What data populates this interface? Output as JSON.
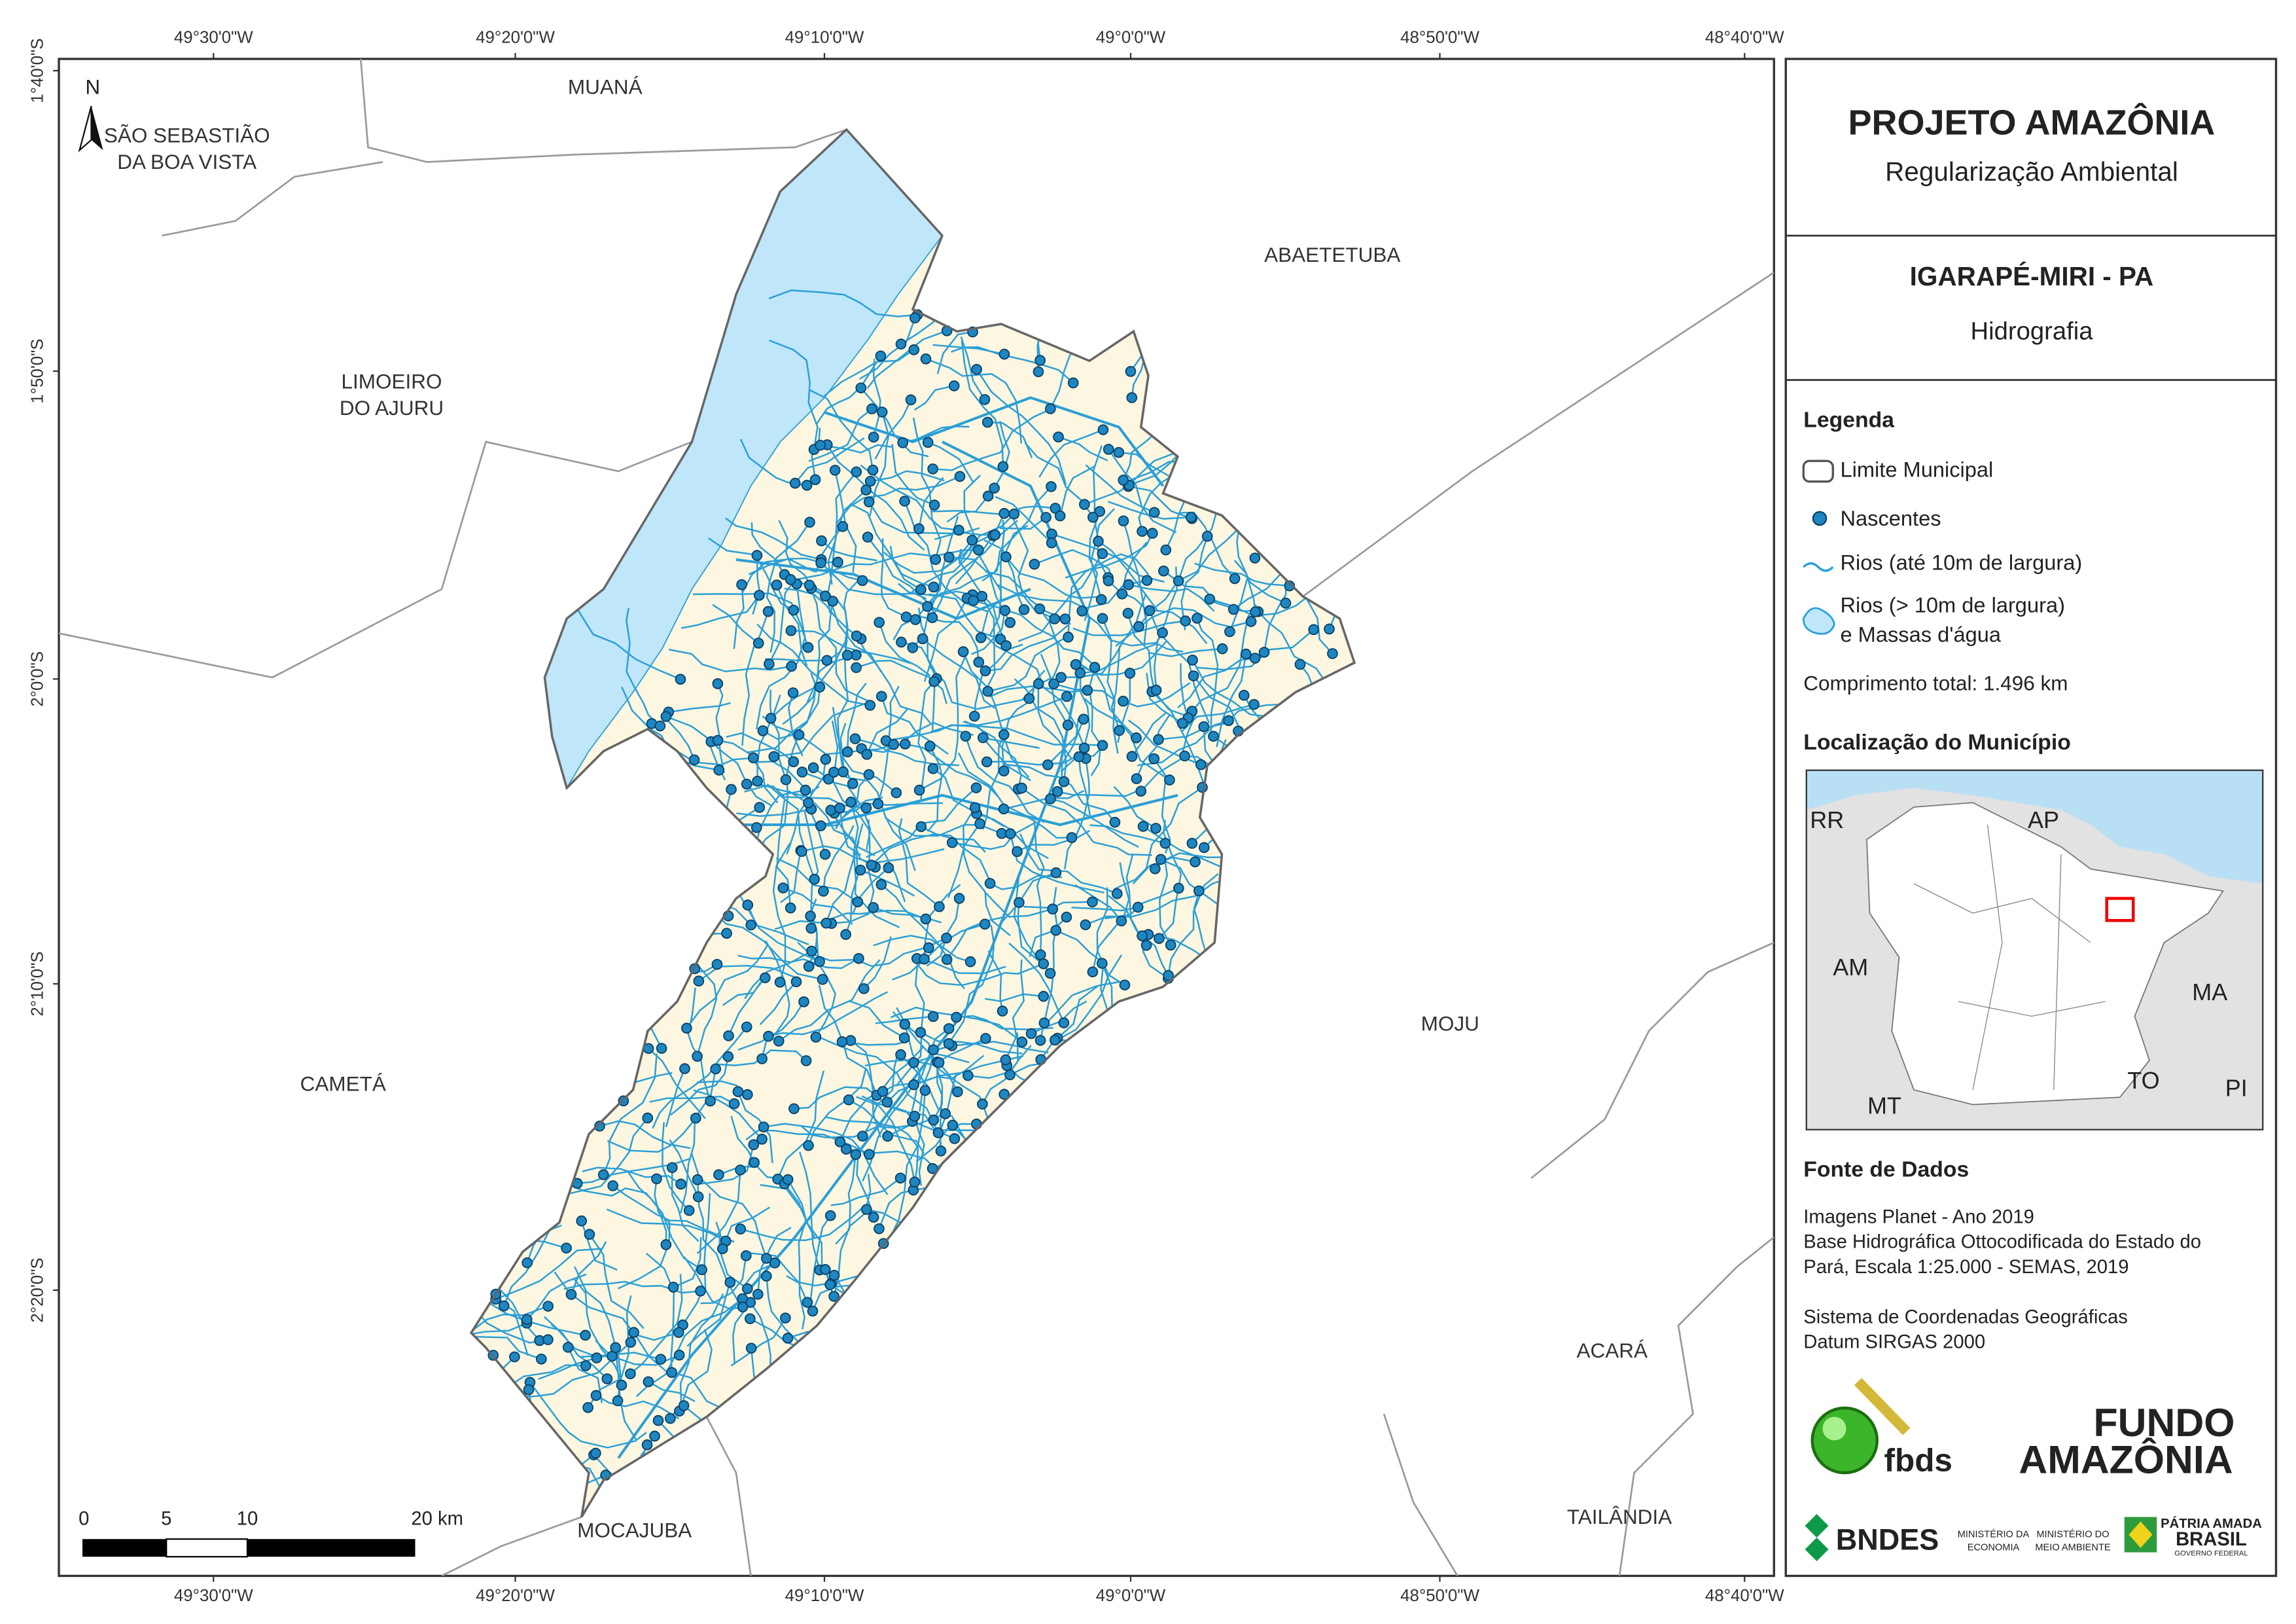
{
  "header": {
    "title": "PROJETO AMAZÔNIA",
    "subtitle": "Regularização Ambiental"
  },
  "map_title": {
    "title": "IGARAPÉ-MIRI - PA",
    "subtitle": "Hidrografia"
  },
  "grid": {
    "lon_labels": [
      "49°30'0\"W",
      "49°20'0\"W",
      "49°10'0\"W",
      "49°0'0\"W",
      "48°50'0\"W",
      "48°40'0\"W"
    ],
    "lat_labels": [
      "1°40'0\"S",
      "1°50'0\"S",
      "2°0'0\"S",
      "2°10'0\"S",
      "2°20'0\"S"
    ]
  },
  "north_arrow": "N",
  "places": [
    {
      "lines": [
        "MUANÁ"
      ]
    },
    {
      "lines": [
        "SÃO SEBASTIÃO",
        "DA BOA VISTA"
      ]
    },
    {
      "lines": [
        "ABAETETUBA"
      ]
    },
    {
      "lines": [
        "LIMOEIRO",
        "DO AJURU"
      ]
    },
    {
      "lines": [
        "CAMETÁ"
      ]
    },
    {
      "lines": [
        "MOJU"
      ]
    },
    {
      "lines": [
        "ACARÁ"
      ]
    },
    {
      "lines": [
        "TAILÂNDIA"
      ]
    },
    {
      "lines": [
        "MOCAJUBA"
      ]
    }
  ],
  "scale_bar": {
    "labels": [
      "0",
      "5",
      "10",
      "20 km"
    ]
  },
  "legend": {
    "title": "Legenda",
    "items": [
      {
        "lines": [
          "Limite Municipal"
        ]
      },
      {
        "lines": [
          "Nascentes"
        ]
      },
      {
        "lines": [
          "Rios (até 10m de largura)"
        ]
      },
      {
        "lines": [
          "Rios (> 10m de largura)",
          "e Massas d'água"
        ]
      }
    ],
    "total": "Comprimento total:  1.496 km"
  },
  "location": {
    "title": "Localização do Município",
    "labels": [
      "RR",
      "AP",
      "AM",
      "MA",
      "MT",
      "TO",
      "PI"
    ]
  },
  "sources": {
    "title": "Fonte de Dados",
    "lines": [
      "Imagens Planet - Ano 2019",
      "Base Hidrográfica Ottocodificada do Estado do",
      "Pará, Escala 1:25.000 - SEMAS, 2019",
      "Sistema de Coordenadas Geográficas",
      "Datum SIRGAS 2000"
    ]
  },
  "logos": {
    "fbds": "fbds",
    "fundo": [
      "FUNDO",
      "AMAZÔNIA"
    ],
    "bndes": "BNDES",
    "ministries": [
      "MINISTÉRIO DA",
      "ECONOMIA",
      "MINISTÉRIO DO",
      "MEIO AMBIENTE"
    ],
    "brasil": [
      "PÁTRIA AMADA",
      "BRASIL",
      "GOVERNO FEDERAL"
    ]
  }
}
